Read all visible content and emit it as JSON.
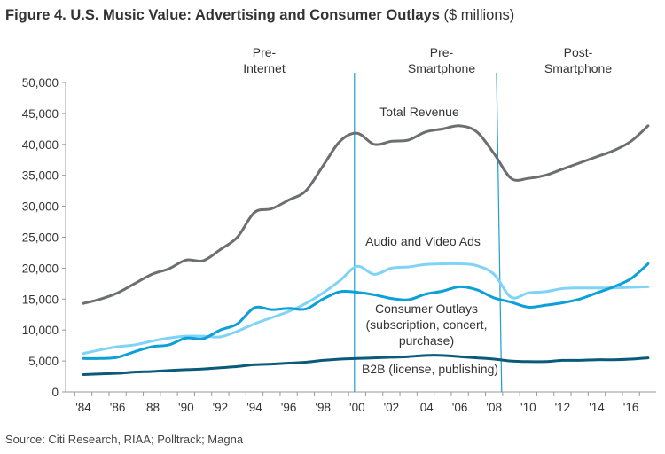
{
  "chart_data": {
    "type": "line",
    "title": "Figure 4. U.S. Music Value: Advertising and Consumer Outlays",
    "title_units": "($ millions)",
    "xlabel": "",
    "ylabel": "",
    "ylim": [
      0,
      50000
    ],
    "yticks": [
      "0",
      "5,000",
      "10,000",
      "15,000",
      "20,000",
      "25,000",
      "30,000",
      "35,000",
      "40,000",
      "45,000",
      "50,000"
    ],
    "xticks": [
      "'84",
      "'86",
      "'88",
      "'90",
      "'92",
      "'94",
      "'96",
      "'98",
      "'00",
      "'02",
      "'04",
      "'06",
      "'08",
      "'10",
      "'12",
      "'14",
      "'16"
    ],
    "x": [
      1984,
      1985,
      1986,
      1987,
      1988,
      1989,
      1990,
      1991,
      1992,
      1993,
      1994,
      1995,
      1996,
      1997,
      1998,
      1999,
      2000,
      2001,
      2002,
      2003,
      2004,
      2005,
      2006,
      2007,
      2008,
      2009,
      2010,
      2011,
      2012,
      2013,
      2014,
      2015,
      2016,
      2017
    ],
    "series": [
      {
        "name": "Total Revenue",
        "label": "Total Revenue",
        "color": "#6d6e71",
        "values": [
          14300,
          15000,
          16000,
          17500,
          19000,
          19900,
          21300,
          21200,
          23000,
          25000,
          29000,
          29600,
          31000,
          32500,
          36500,
          40500,
          41800,
          40000,
          40500,
          40700,
          42000,
          42500,
          43000,
          42000,
          38500,
          34500,
          34500,
          35000,
          36000,
          37000,
          38000,
          39000,
          40500,
          43000
        ]
      },
      {
        "name": "Audio and Video Ads",
        "label": "Audio and Video Ads",
        "color": "#7fd3f7",
        "values": [
          6200,
          6800,
          7300,
          7600,
          8200,
          8700,
          9000,
          9000,
          8900,
          9800,
          11000,
          12000,
          13000,
          14300,
          16000,
          18000,
          20300,
          19000,
          20000,
          20200,
          20600,
          20700,
          20700,
          20400,
          19000,
          15300,
          16000,
          16200,
          16700,
          16800,
          16800,
          16800,
          16900,
          17000
        ]
      },
      {
        "name": "Consumer Outlays",
        "label": "Consumer Outlays (subscription, concert, purchase)",
        "label_lines": [
          "Consumer Outlays",
          "(subscription, concert,",
          "purchase)"
        ],
        "color": "#0c9fd8",
        "values": [
          5400,
          5400,
          5600,
          6500,
          7300,
          7600,
          8700,
          8600,
          10000,
          11000,
          13600,
          13300,
          13500,
          13400,
          15000,
          16200,
          16100,
          15700,
          15100,
          14900,
          15800,
          16300,
          17000,
          16500,
          15200,
          14500,
          13700,
          14000,
          14400,
          15000,
          16000,
          17000,
          18300,
          20700
        ]
      },
      {
        "name": "B2B",
        "label": "B2B (license, publishing)",
        "color": "#0a5a7a",
        "values": [
          2800,
          2900,
          3000,
          3200,
          3300,
          3450,
          3600,
          3700,
          3900,
          4100,
          4400,
          4500,
          4650,
          4800,
          5100,
          5300,
          5400,
          5500,
          5600,
          5700,
          5900,
          5900,
          5700,
          5500,
          5300,
          5000,
          4900,
          4900,
          5100,
          5100,
          5200,
          5200,
          5300,
          5500
        ]
      }
    ],
    "eras": [
      {
        "label_lines": [
          "Pre-",
          "Internet"
        ]
      },
      {
        "label_lines": [
          "Pre-",
          "Smartphone"
        ],
        "start": 2000
      },
      {
        "label_lines": [
          "Post-",
          "Smartphone"
        ],
        "start": 2008.5
      }
    ],
    "grid": false,
    "legend": "inline labels"
  },
  "source": "Source: Citi Research, RIAA; Polltrack; Magna"
}
